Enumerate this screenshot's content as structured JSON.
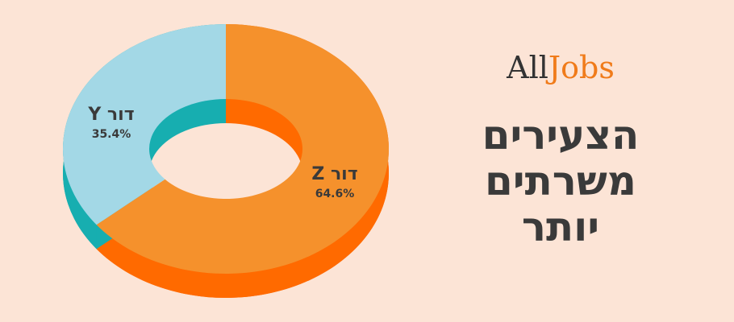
{
  "chart_data": {
    "type": "donut3d",
    "categories": [
      "דור Z",
      "דור Y"
    ],
    "values": [
      64.6,
      35.4
    ],
    "value_labels": [
      "64.6%",
      "35.4%"
    ],
    "colors": [
      "#f5912c",
      "#a3d8e6"
    ],
    "side_colors": [
      "#ff6a00",
      "#17aeb0"
    ]
  },
  "logo": {
    "left": "All",
    "right": "Jobs"
  },
  "title_lines": [
    "הצעירים",
    "משרתים",
    "יותר"
  ]
}
